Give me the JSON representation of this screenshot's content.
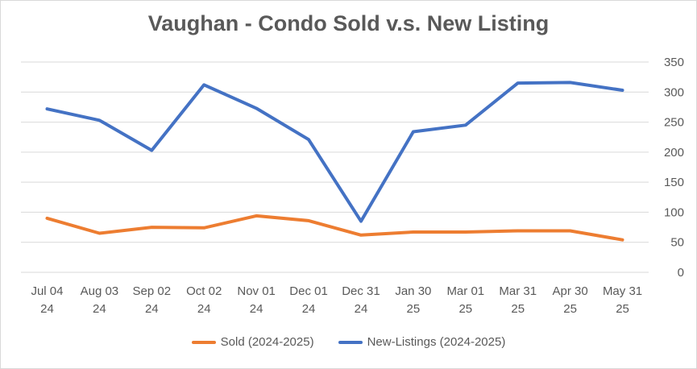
{
  "chart_data": {
    "type": "line",
    "title": "Vaughan - Condo Sold v.s. New Listing",
    "categories": [
      [
        "Jul 04",
        "24"
      ],
      [
        "Aug 03",
        "24"
      ],
      [
        "Sep 02",
        "24"
      ],
      [
        "Oct 02",
        "24"
      ],
      [
        "Nov 01",
        "24"
      ],
      [
        "Dec 01",
        "24"
      ],
      [
        "Dec 31",
        "24"
      ],
      [
        "Jan 30",
        "25"
      ],
      [
        "Mar 01",
        "25"
      ],
      [
        "Mar 31",
        "25"
      ],
      [
        "Apr 30",
        "25"
      ],
      [
        "May 31",
        "25"
      ]
    ],
    "series": [
      {
        "name": "Sold (2024-2025)",
        "color": "#ED7D31",
        "values": [
          90,
          65,
          75,
          74,
          94,
          86,
          62,
          67,
          67,
          69,
          69,
          54
        ]
      },
      {
        "name": "New-Listings (2024-2025)",
        "color": "#4472C4",
        "values": [
          272,
          253,
          203,
          312,
          273,
          221,
          85,
          234,
          245,
          315,
          316,
          303
        ]
      }
    ],
    "ylim": [
      0,
      350
    ],
    "yticks": [
      0,
      50,
      100,
      150,
      200,
      250,
      300,
      350
    ],
    "y_axis_side": "right",
    "grid": true,
    "legend_position": "bottom",
    "gridline_color": "#d9d9d9"
  }
}
